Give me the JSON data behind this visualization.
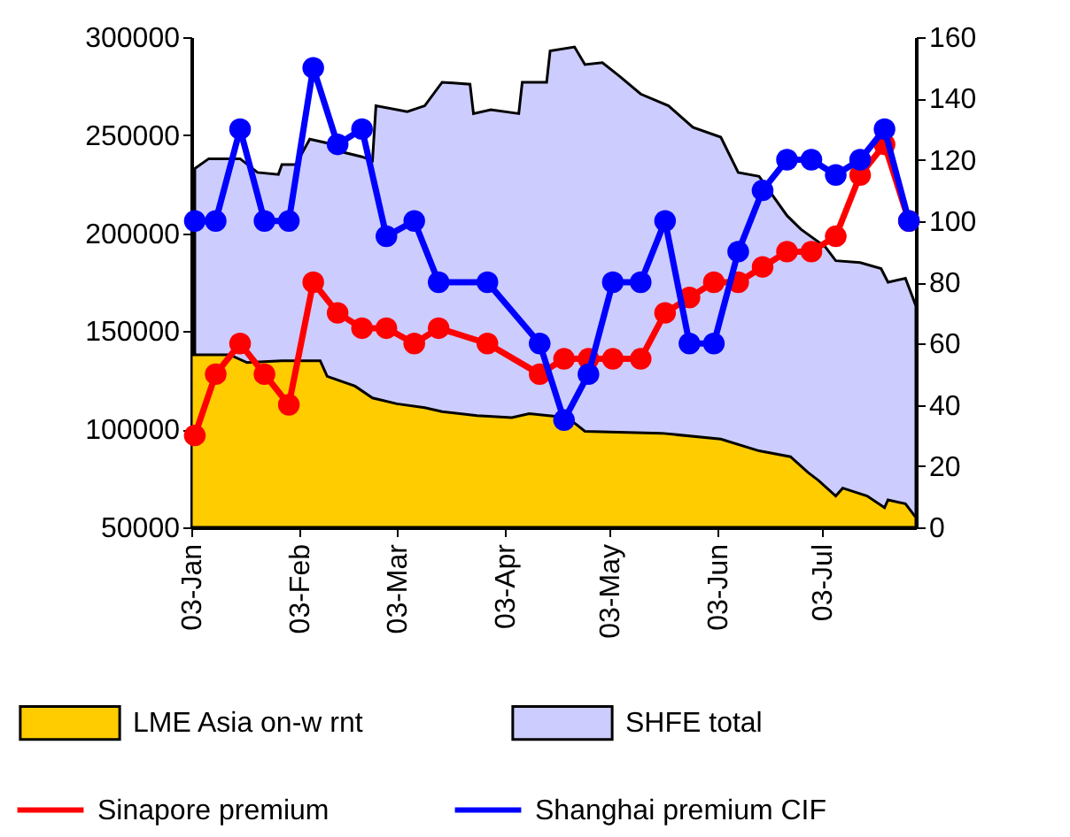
{
  "chart_data": {
    "type": "line",
    "xlim": [
      "--01-03",
      "--07-30"
    ],
    "xticks": [
      {
        "value": "--01-03",
        "label": "03-Jan"
      },
      {
        "value": "--02-03",
        "label": "03-Feb"
      },
      {
        "value": "--03-03",
        "label": "03-Mar"
      },
      {
        "value": "--04-03",
        "label": "03-Apr"
      },
      {
        "value": "--05-03",
        "label": "03-May"
      },
      {
        "value": "--06-03",
        "label": "03-Jun"
      },
      {
        "value": "--07-03",
        "label": "03-Jul"
      }
    ],
    "ylim": [
      50000,
      300000
    ],
    "yticks": [
      50000,
      100000,
      150000,
      200000,
      250000,
      300000
    ],
    "y2lim": [
      0,
      160
    ],
    "y2ticks": [
      0,
      20,
      40,
      60,
      80,
      100,
      120,
      140,
      160
    ],
    "legend": "bottom",
    "grid": false,
    "series": [
      {
        "name": "LME Asia on-w rnt",
        "type": "area",
        "color": "#ffcc00",
        "x": [
          "--01-03",
          "--01-14",
          "--01-19",
          "--01-29",
          "--02-09",
          "--02-11",
          "--02-19",
          "--02-24",
          "--03-03",
          "--03-11",
          "--03-16",
          "--03-26",
          "--04-05",
          "--04-10",
          "--04-21",
          "--04-26",
          "--05-18",
          "--06-04",
          "--06-15",
          "--06-24",
          "--06-29",
          "--07-02",
          "--07-07",
          "--07-09",
          "--07-16",
          "--07-21",
          "--07-22",
          "--07-27",
          "--07-30"
        ],
        "values": [
          138000,
          138000,
          134000,
          135000,
          135000,
          127000,
          122000,
          116000,
          113000,
          111000,
          109000,
          107000,
          106000,
          108000,
          106000,
          99000,
          98000,
          95000,
          89000,
          86000,
          78000,
          74000,
          66000,
          70000,
          66000,
          60000,
          64000,
          62000,
          55000
        ]
      },
      {
        "name": "SHFE total",
        "type": "area",
        "color": "#ccccff",
        "x": [
          "--01-04",
          "--01-08",
          "--01-17",
          "--01-22",
          "--01-28",
          "--01-29",
          "--02-02",
          "--02-06",
          "--02-11",
          "--02-14",
          "--02-21",
          "--02-24",
          "--02-25",
          "--03-06",
          "--03-11",
          "--03-16",
          "--03-24",
          "--03-25",
          "--03-30",
          "--04-07",
          "--04-08",
          "--04-15",
          "--04-16",
          "--04-23",
          "--04-26",
          "--05-01",
          "--05-06",
          "--05-12",
          "--05-20",
          "--05-27",
          "--06-04",
          "--06-09",
          "--06-15",
          "--06-23",
          "--06-27",
          "--07-04",
          "--07-07",
          "--07-14",
          "--07-20",
          "--07-22",
          "--07-27",
          "--07-30"
        ],
        "values": [
          233000,
          238000,
          238000,
          231000,
          230000,
          235000,
          235000,
          248000,
          246000,
          242000,
          239000,
          237000,
          265000,
          262000,
          265000,
          277000,
          276000,
          261000,
          263000,
          261000,
          277000,
          277000,
          293000,
          295000,
          286000,
          287000,
          280000,
          271000,
          265000,
          254000,
          249000,
          231000,
          229000,
          209000,
          202000,
          193000,
          186000,
          185000,
          182000,
          175000,
          177000,
          163000
        ]
      },
      {
        "name": "Sinapore premium",
        "marker": "circle",
        "axis": "y2",
        "color": "#ff0000",
        "x": [
          "--01-04",
          "--01-10",
          "--01-17",
          "--01-24",
          "--01-31",
          "--02-07",
          "--02-14",
          "--02-21",
          "--02-28",
          "--03-08",
          "--03-15",
          "--03-29",
          "--04-13",
          "--04-20",
          "--04-27",
          "--05-04",
          "--05-12",
          "--05-19",
          "--05-26",
          "--06-02",
          "--06-09",
          "--06-16",
          "--06-23",
          "--06-30",
          "--07-07",
          "--07-14",
          "--07-21",
          "--07-28"
        ],
        "values": [
          30,
          50,
          60,
          50,
          40,
          80,
          70,
          65,
          65,
          60,
          65,
          60,
          50,
          55,
          55,
          55,
          55,
          70,
          75,
          80,
          80,
          85,
          90,
          90,
          95,
          115,
          125,
          100
        ]
      },
      {
        "name": "Shanghai premium CIF",
        "marker": "circle",
        "axis": "y2",
        "color": "#0000ff",
        "x": [
          "--01-04",
          "--01-10",
          "--01-17",
          "--01-24",
          "--01-31",
          "--02-07",
          "--02-14",
          "--02-21",
          "--02-28",
          "--03-08",
          "--03-15",
          "--03-29",
          "--04-13",
          "--04-20",
          "--04-27",
          "--05-04",
          "--05-12",
          "--05-19",
          "--05-26",
          "--06-02",
          "--06-09",
          "--06-16",
          "--06-23",
          "--06-30",
          "--07-07",
          "--07-14",
          "--07-21",
          "--07-28"
        ],
        "values": [
          100,
          100,
          130,
          100,
          100,
          150,
          125,
          130,
          95,
          100,
          80,
          80,
          60,
          35,
          50,
          80,
          80,
          100,
          60,
          60,
          90,
          110,
          120,
          120,
          115,
          120,
          130,
          100
        ]
      }
    ]
  }
}
